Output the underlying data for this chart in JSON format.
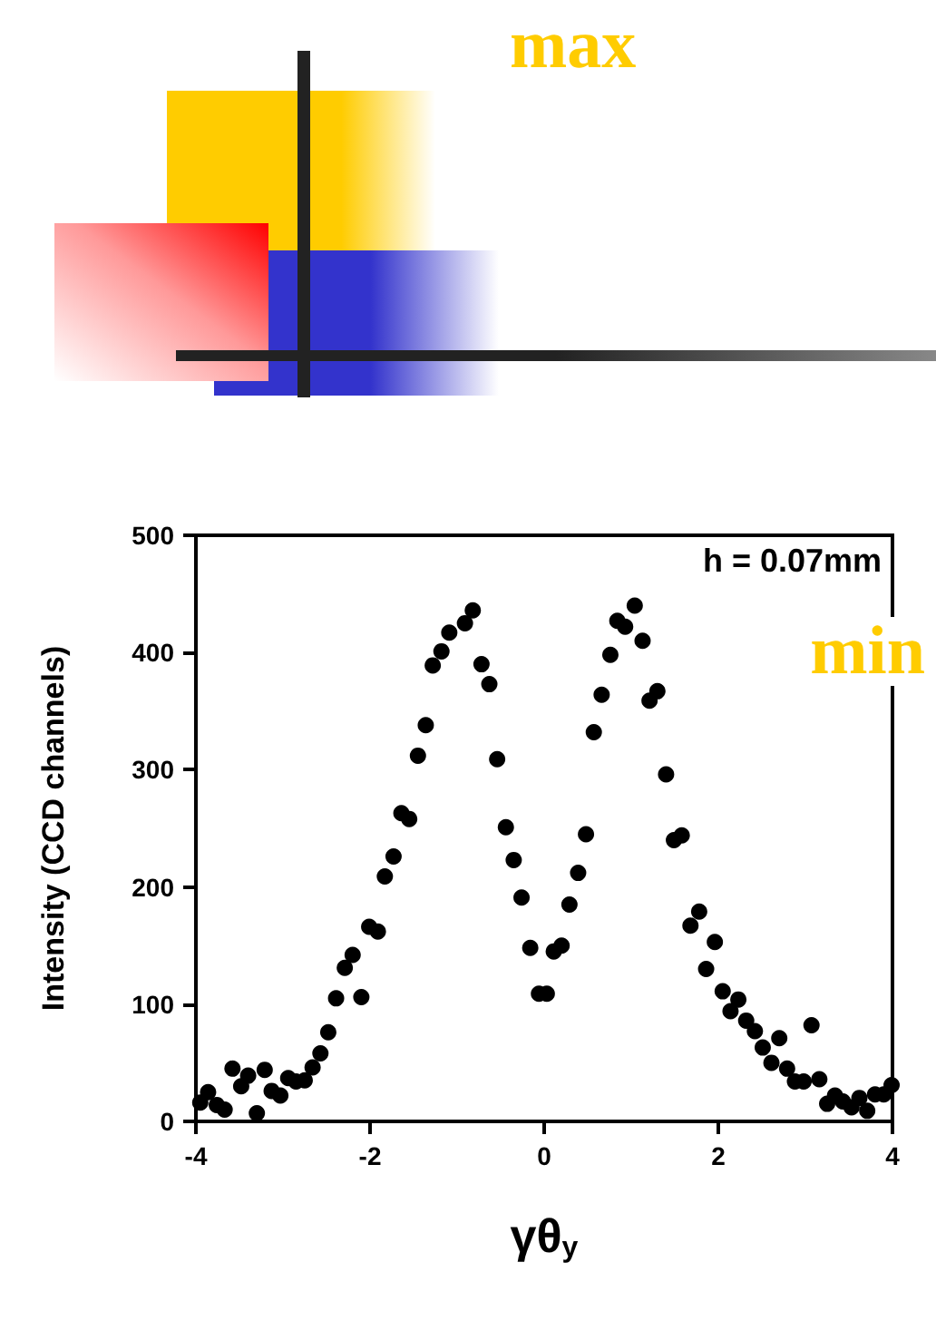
{
  "chart_data": {
    "type": "scatter",
    "xlabel": "γθ$_{y}$",
    "ylabel": "Intensity (CCD channels)",
    "annotations": [
      "max",
      "min",
      "h = 0.07mm"
    ],
    "xlim": [
      -4,
      4
    ],
    "xticks": [
      -4,
      -2,
      0,
      2,
      4
    ],
    "ylim": [
      0,
      500
    ],
    "yticks": [
      0,
      100,
      200,
      300,
      400,
      500
    ],
    "grid": false,
    "marker": "circle",
    "series": [
      {
        "color": "#000000",
        "x": [
          -3.95,
          -3.86,
          -3.76,
          -3.67,
          -3.58,
          -3.48,
          -3.4,
          -3.3,
          -3.21,
          -3.13,
          -3.03,
          -2.94,
          -2.85,
          -2.75,
          -2.66,
          -2.57,
          -2.48,
          -2.39,
          -2.29,
          -2.2,
          -2.1,
          -2.01,
          -1.91,
          -1.83,
          -1.73,
          -1.64,
          -1.55,
          -1.45,
          -1.36,
          -1.28,
          -1.18,
          -1.09,
          -0.91,
          -0.82,
          -0.72,
          -0.63,
          -0.54,
          -0.44,
          -0.35,
          -0.26,
          -0.16,
          -0.06,
          0.03,
          0.11,
          0.2,
          0.29,
          0.39,
          0.48,
          0.57,
          0.66,
          0.76,
          0.84,
          0.93,
          1.04,
          1.13,
          1.21,
          1.3,
          1.4,
          1.49,
          1.58,
          1.68,
          1.78,
          1.86,
          1.96,
          2.05,
          2.14,
          2.23,
          2.32,
          2.42,
          2.51,
          2.61,
          2.7,
          2.79,
          2.88,
          2.98,
          3.07,
          3.16,
          3.25,
          3.34,
          3.43,
          3.53,
          3.62,
          3.71,
          3.8,
          3.9,
          3.99
        ],
        "values": [
          16,
          25,
          14,
          10,
          45,
          30,
          39,
          7,
          44,
          26,
          22,
          37,
          34,
          35,
          46,
          58,
          76,
          105,
          131,
          142,
          106,
          166,
          162,
          209,
          226,
          263,
          258,
          312,
          338,
          389,
          401,
          417,
          425,
          436,
          390,
          373,
          309,
          251,
          223,
          191,
          148,
          109,
          109,
          145,
          150,
          185,
          212,
          245,
          332,
          364,
          398,
          427,
          422,
          440,
          410,
          359,
          367,
          296,
          240,
          244,
          167,
          179,
          130,
          153,
          111,
          94,
          104,
          86,
          77,
          63,
          50,
          71,
          45,
          34,
          34,
          82,
          36,
          15,
          22,
          17,
          12,
          20,
          9,
          23,
          23,
          31
        ]
      }
    ]
  }
}
